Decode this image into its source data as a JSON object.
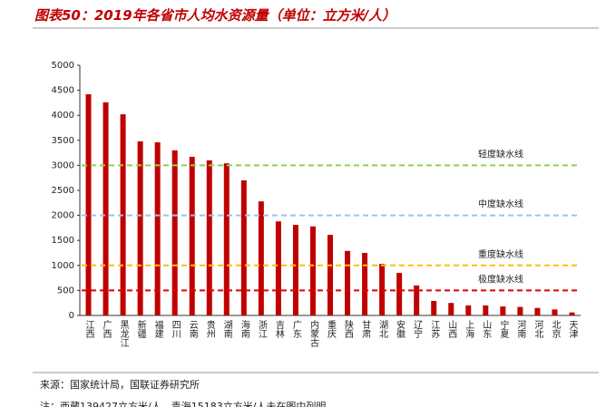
{
  "chart_data": {
    "type": "bar",
    "title": "图表50：2019年各省市人均水资源量（单位：立方米/人）",
    "categories": [
      "江西",
      "广西",
      "黑龙江",
      "新疆",
      "福建",
      "四川",
      "云南",
      "贵州",
      "湖南",
      "海南",
      "浙江",
      "吉林",
      "广东",
      "内蒙古",
      "重庆",
      "陕西",
      "甘肃",
      "湖北",
      "安徽",
      "辽宁",
      "江苏",
      "山西",
      "上海",
      "山东",
      "宁夏",
      "河南",
      "河北",
      "北京",
      "天津"
    ],
    "values": [
      4420,
      4260,
      4020,
      3480,
      3460,
      3300,
      3170,
      3100,
      3040,
      2700,
      2280,
      1880,
      1810,
      1780,
      1610,
      1290,
      1250,
      1030,
      850,
      600,
      290,
      250,
      200,
      200,
      180,
      170,
      150,
      120,
      60
    ],
    "color": "#c00000",
    "ylim": [
      0,
      5000
    ],
    "yticks": [
      0,
      500,
      1000,
      1500,
      2000,
      2500,
      3000,
      3500,
      4000,
      4500,
      5000
    ],
    "reference_lines": [
      {
        "value": 3000,
        "label": "轻度缺水线",
        "color": "#92d050"
      },
      {
        "value": 2000,
        "label": "中度缺水线",
        "color": "#9dc3e6"
      },
      {
        "value": 1000,
        "label": "重度缺水线",
        "color": "#ffc000"
      },
      {
        "value": 500,
        "label": "极度缺水线",
        "color": "#e00000"
      }
    ],
    "source": "来源：国家统计局，国联证券研究所",
    "note": "注：西藏139427立方米/人，青海15183立方米/人未在图中列明"
  }
}
